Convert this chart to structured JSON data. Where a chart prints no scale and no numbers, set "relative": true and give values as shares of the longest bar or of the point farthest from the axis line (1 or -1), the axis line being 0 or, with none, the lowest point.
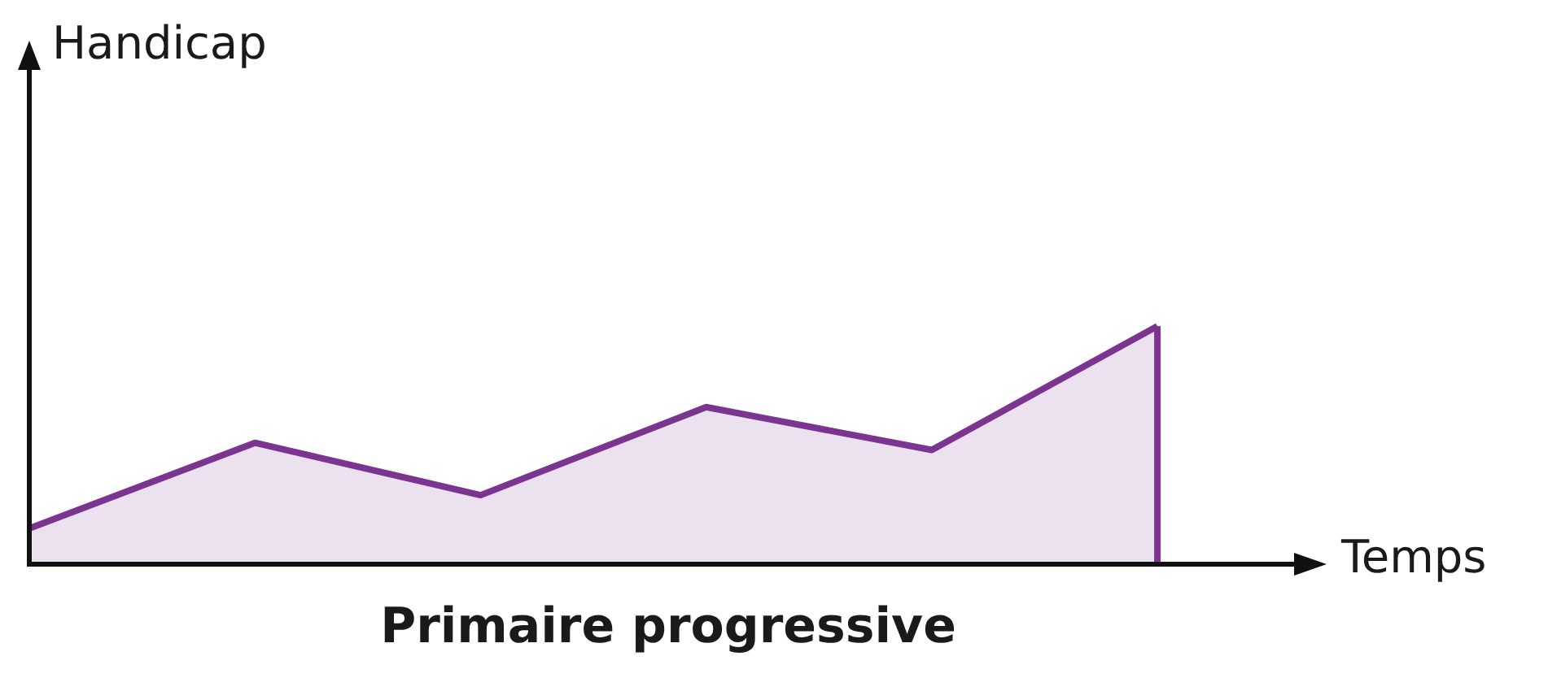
{
  "chart_data": {
    "type": "area",
    "title": "Primaire progressive",
    "xlabel": "Temps",
    "annotations": [
      "Handicap"
    ],
    "relative": true,
    "categories": [
      null,
      null,
      null,
      null,
      null,
      null
    ],
    "values": [
      0.15,
      0.51,
      0.29,
      0.66,
      0.48,
      1
    ],
    "color": "#7b3590"
  }
}
